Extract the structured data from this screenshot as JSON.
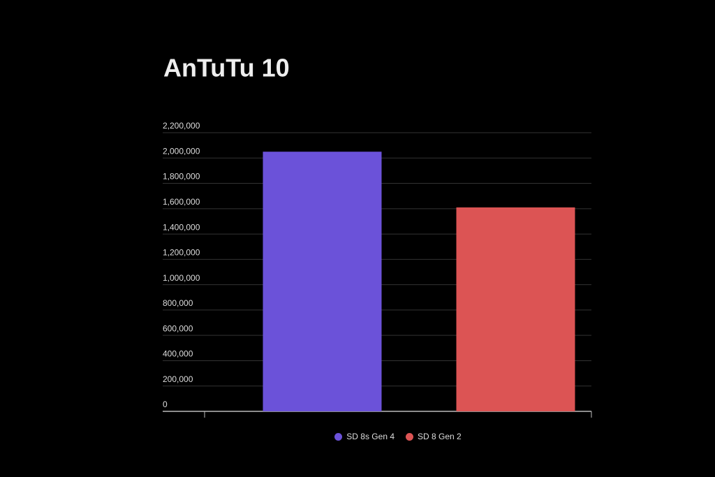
{
  "chart_data": {
    "type": "bar",
    "title": "AnTuTu 10",
    "categories": [
      null
    ],
    "series": [
      {
        "name": "SD 8s Gen 4",
        "color": "#6b52d9",
        "values": [
          2050000
        ]
      },
      {
        "name": "SD 8 Gen 2",
        "color": "#dc5454",
        "values": [
          1610000
        ]
      }
    ],
    "ylim": [
      0,
      2200000
    ],
    "yticks": [
      0,
      {
        "value": 200000,
        "label": "200,000"
      },
      {
        "value": 400000,
        "label": "400,000"
      },
      {
        "value": 600000,
        "label": "600,000"
      },
      {
        "value": 800000,
        "label": "800,000"
      },
      {
        "value": 1000000,
        "label": "1,000,000"
      },
      {
        "value": 1200000,
        "label": "1,200,000"
      },
      {
        "value": 1400000,
        "label": "1,400,000"
      },
      {
        "value": 1600000,
        "label": "1,600,000"
      },
      {
        "value": 1800000,
        "label": "1,800,000"
      },
      {
        "value": 2000000,
        "label": "2,000,000"
      },
      {
        "value": 2200000,
        "label": "2,200,000"
      }
    ],
    "grid": true,
    "legend": "bottom"
  }
}
